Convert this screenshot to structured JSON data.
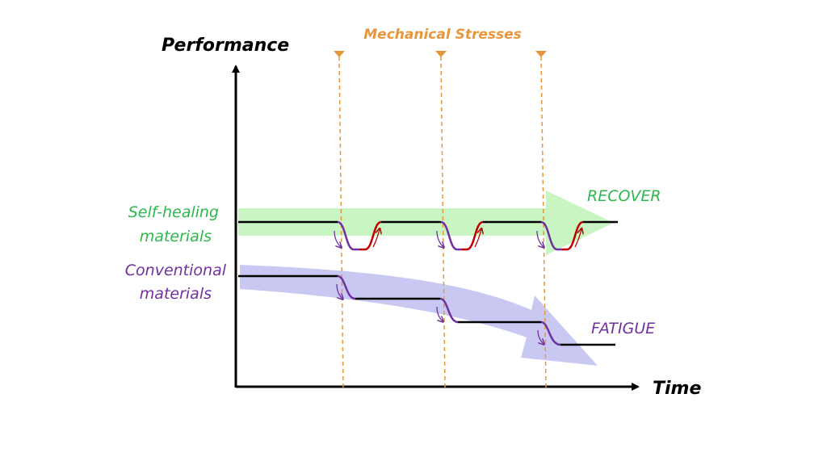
{
  "labels": {
    "y_axis": "Performance",
    "x_axis": "Time",
    "stresses": "Mechanical Stresses",
    "self_healing_line1": "Self-healing",
    "self_healing_line2": "materials",
    "conventional_line1": "Conventional",
    "conventional_line2": "materials",
    "recover": "RECOVER",
    "fatigue": "FATIGUE"
  },
  "colors": {
    "axis": "#000000",
    "stress": "#E8963C",
    "green_text": "#2DB84D",
    "green_band": "#C9F5C3",
    "purple": "#7030A0",
    "lavender_band": "#C9C8F2",
    "red": "#C00000"
  },
  "stress_events": 3
}
